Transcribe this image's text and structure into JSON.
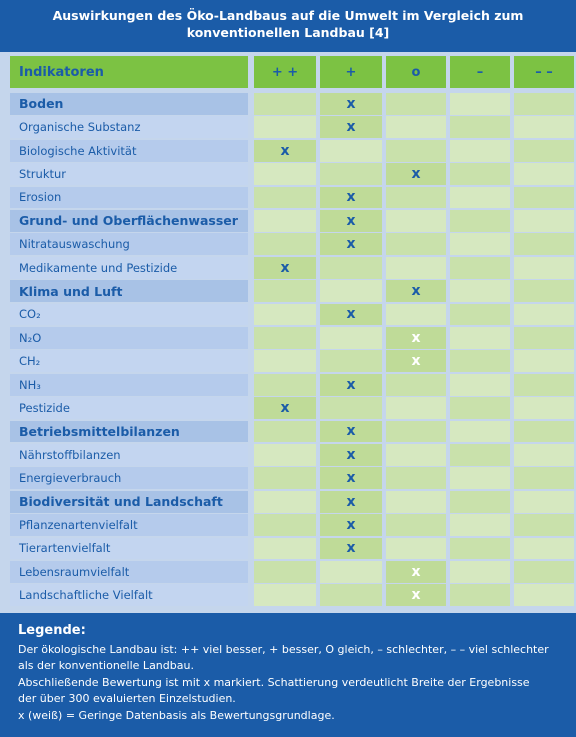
{
  "header": {
    "title_lines": [
      "Auswirkungen des Öko-Landbaus auf die Umwelt im Vergleich zum",
      "konventionellen Landbau [4]"
    ]
  },
  "table": {
    "columns": [
      "Indikatoren",
      "+ +",
      "+",
      "o",
      "–",
      "– –"
    ],
    "rows": [
      {
        "label": "Boden",
        "category": true,
        "cells": [
          null,
          "x",
          null,
          null,
          null
        ]
      },
      {
        "label": "Organische Substanz",
        "cells": [
          null,
          "x",
          null,
          null,
          null
        ]
      },
      {
        "label": "Biologische Aktivität",
        "cells": [
          "x",
          null,
          null,
          null,
          null
        ]
      },
      {
        "label": "Struktur",
        "cells": [
          null,
          null,
          "x",
          null,
          null
        ]
      },
      {
        "label": "Erosion",
        "cells": [
          null,
          "x",
          null,
          null,
          null
        ]
      },
      {
        "label": "Grund- und Oberflächenwasser",
        "category": true,
        "cells": [
          null,
          "x",
          null,
          null,
          null
        ]
      },
      {
        "label": "Nitratauswaschung",
        "cells": [
          null,
          "x",
          null,
          null,
          null
        ]
      },
      {
        "label": "Medikamente und Pestizide",
        "cells": [
          "x",
          null,
          null,
          null,
          null
        ]
      },
      {
        "label": "Klima und Luft",
        "category": true,
        "cells": [
          null,
          null,
          "x",
          null,
          null
        ]
      },
      {
        "label": "CO₂",
        "cells": [
          null,
          "x",
          null,
          null,
          null
        ]
      },
      {
        "label": "N₂O",
        "weak": true,
        "cells": [
          null,
          null,
          "x",
          null,
          null
        ]
      },
      {
        "label": "CH₂",
        "weak": true,
        "cells": [
          null,
          null,
          "x",
          null,
          null
        ]
      },
      {
        "label": "NH₃",
        "cells": [
          null,
          "x",
          null,
          null,
          null
        ]
      },
      {
        "label": "Pestizide",
        "cells": [
          "x",
          null,
          null,
          null,
          null
        ]
      },
      {
        "label": "Betriebsmittelbilanzen",
        "category": true,
        "cells": [
          null,
          "x",
          null,
          null,
          null
        ]
      },
      {
        "label": "Nährstoffbilanzen",
        "cells": [
          null,
          "x",
          null,
          null,
          null
        ]
      },
      {
        "label": "Energieverbrauch",
        "cells": [
          null,
          "x",
          null,
          null,
          null
        ]
      },
      {
        "label": "Biodiversität und Landschaft",
        "category": true,
        "cells": [
          null,
          "x",
          null,
          null,
          null
        ]
      },
      {
        "label": "Pflanzenartenvielfalt",
        "cells": [
          null,
          "x",
          null,
          null,
          null
        ]
      },
      {
        "label": "Tierartenvielfalt",
        "cells": [
          null,
          "x",
          null,
          null,
          null
        ]
      },
      {
        "label": "Lebensraumvielfalt",
        "weak": true,
        "cells": [
          null,
          null,
          "x",
          null,
          null
        ]
      },
      {
        "label": "Landschaftliche Vielfalt",
        "weak": true,
        "cells": [
          null,
          null,
          "x",
          null,
          null
        ]
      }
    ]
  },
  "legend": {
    "heading": "Legende:",
    "lines": [
      "Der ökologische Landbau ist:  ++ viel besser, + besser, O gleich, – schlechter, – – viel schlechter",
      "als der konventionelle Landbau.",
      "Abschließende Bewertung ist mit x markiert. Schattierung verdeutlicht Breite der Ergebnisse",
      "der über 300 evaluierten Einzelstudien.",
      "x (weiß) = Geringe Datenbasis als Bewertungsgrundlage."
    ]
  }
}
